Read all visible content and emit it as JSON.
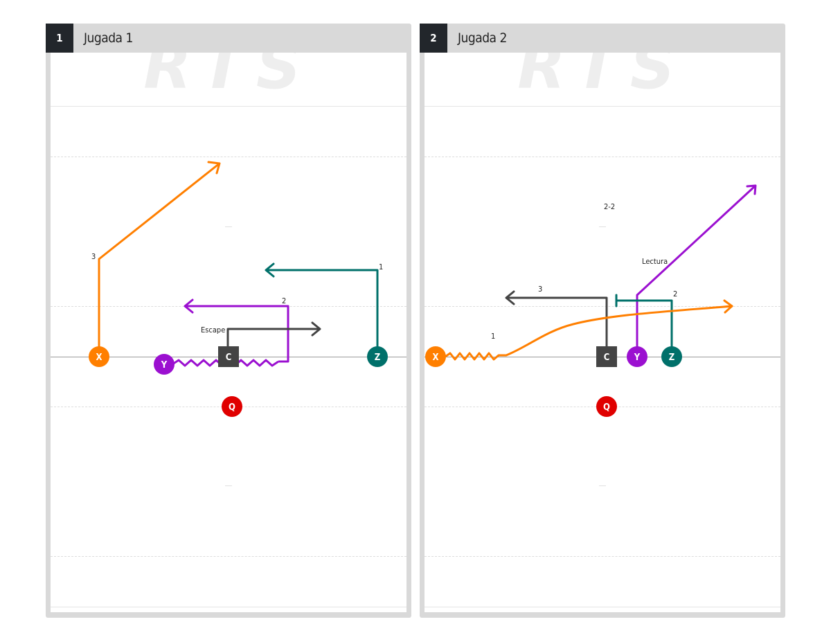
{
  "plays": [
    {
      "number": "1",
      "title": "Jugada 1",
      "watermark": "RTS",
      "players": [
        {
          "id": "X",
          "color": "#ff7f00",
          "shape": "circle"
        },
        {
          "id": "Y",
          "color": "#9b10d0",
          "shape": "circle"
        },
        {
          "id": "C",
          "color": "#444444",
          "shape": "square"
        },
        {
          "id": "Z",
          "color": "#00706a",
          "shape": "circle"
        },
        {
          "id": "Q",
          "color": "#e00000",
          "shape": "circle"
        }
      ],
      "route_labels": [
        "3",
        "1",
        "2",
        "Escape"
      ]
    },
    {
      "number": "2",
      "title": "Jugada 2",
      "watermark": "RTS",
      "players": [
        {
          "id": "X",
          "color": "#ff7f00",
          "shape": "circle"
        },
        {
          "id": "C",
          "color": "#444444",
          "shape": "square"
        },
        {
          "id": "Y",
          "color": "#9b10d0",
          "shape": "circle"
        },
        {
          "id": "Z",
          "color": "#00706a",
          "shape": "circle"
        },
        {
          "id": "Q",
          "color": "#e00000",
          "shape": "circle"
        }
      ],
      "route_labels": [
        "2-2",
        "Lectura",
        "3",
        "2",
        "1"
      ]
    }
  ]
}
